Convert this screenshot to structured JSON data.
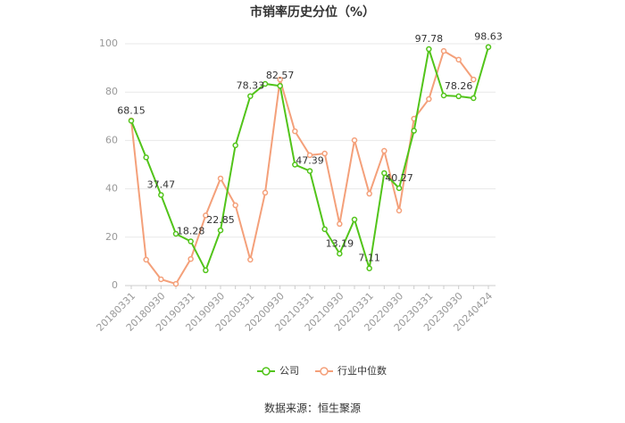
{
  "chart_data": {
    "type": "line",
    "title": "市销率历史分位（%）",
    "source": "数据来源：恒生聚源",
    "categories": [
      "20180331",
      null,
      "20180930",
      null,
      "20190331",
      null,
      "20190930",
      null,
      "20200331",
      null,
      "20200930",
      null,
      "20210331",
      null,
      "20210930",
      null,
      "20220331",
      null,
      "20220930",
      null,
      "20230331",
      null,
      "20230930",
      null,
      "20240424"
    ],
    "series": [
      {
        "name": "公司",
        "color": "#52c41a",
        "values": [
          68.15,
          53,
          37.47,
          21.4,
          18.28,
          6.3,
          22.85,
          58,
          78.33,
          83.4,
          82.57,
          50,
          47.39,
          23.3,
          13.19,
          27.3,
          7.11,
          46.5,
          40.27,
          64,
          97.78,
          78.6,
          78.26,
          77.5,
          98.63
        ],
        "value_labels": [
          "68.15",
          null,
          "37.47",
          null,
          "18.28",
          null,
          "22.85",
          null,
          "78.33",
          null,
          "82.57",
          null,
          "47.39",
          null,
          "13.19",
          null,
          "7.11",
          null,
          "40.27",
          null,
          "97.78",
          null,
          "78.26",
          null,
          "98.63"
        ]
      },
      {
        "name": "行业中位数",
        "color": "#f4a07a",
        "values": [
          68.3,
          10.7,
          2.6,
          0.7,
          11,
          29,
          44.3,
          33.2,
          10.7,
          38.4,
          85.2,
          63.8,
          53.9,
          54.6,
          25.5,
          60.1,
          38,
          55.7,
          31,
          69,
          77.1,
          97,
          93.4,
          85.2,
          null
        ]
      }
    ],
    "ylim": [
      0,
      100
    ],
    "yticks": [
      0,
      20,
      40,
      60,
      80,
      100
    ],
    "grid": true
  }
}
